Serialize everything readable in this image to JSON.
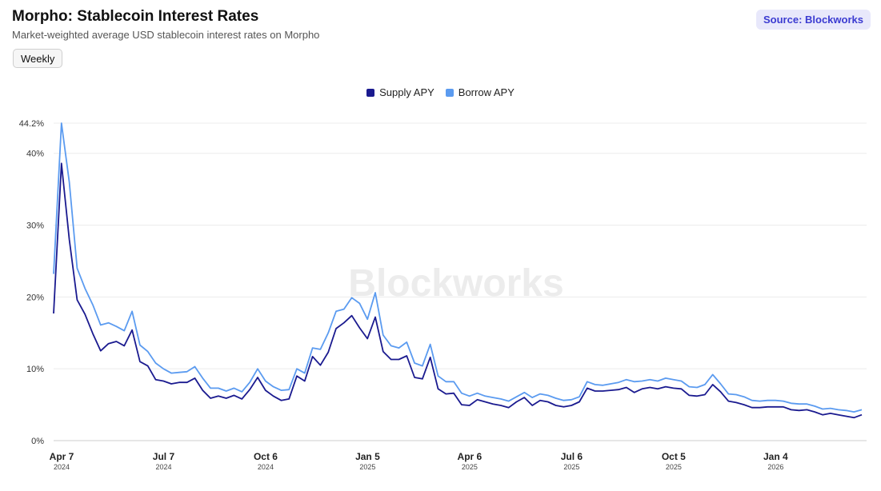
{
  "header": {
    "title": "Morpho: Stablecoin Interest Rates",
    "subtitle": "Market-weighted average USD stablecoin interest rates on Morpho",
    "source": "Source: Blockworks"
  },
  "controls": {
    "interval_label": "Weekly"
  },
  "watermark": "Blockworks",
  "colors": {
    "supply": "#1a1a8f",
    "borrow": "#5b9bf0",
    "grid": "#ececec",
    "watermark": "#ececec"
  },
  "chart_data": {
    "type": "line",
    "title": "Morpho: Stablecoin Interest Rates",
    "xlabel": "",
    "ylabel": "",
    "ylim": [
      0,
      44.2
    ],
    "y_ticks": [
      "0%",
      "10%",
      "20%",
      "30%",
      "40%",
      "44.2%"
    ],
    "y_tick_values": [
      0,
      10,
      20,
      30,
      40,
      44.2
    ],
    "x_ticks": [
      {
        "month": "Apr 7",
        "year": "2024",
        "index": 0
      },
      {
        "month": "Jul 7",
        "year": "2024",
        "index": 13
      },
      {
        "month": "Oct 6",
        "year": "2024",
        "index": 26
      },
      {
        "month": "Jan 5",
        "year": "2025",
        "index": 39
      },
      {
        "month": "Apr 6",
        "year": "2025",
        "index": 52
      },
      {
        "month": "Jul 6",
        "year": "2025",
        "index": 65
      },
      {
        "month": "Oct 5",
        "year": "2025",
        "index": 78
      },
      {
        "month": "Jan 4",
        "year": "2026",
        "index": 91
      }
    ],
    "legend": [
      "Supply APY",
      "Borrow APY"
    ],
    "series": [
      {
        "name": "Supply APY",
        "values": [
          17.7,
          38.6,
          28.0,
          19.6,
          17.6,
          14.9,
          12.5,
          13.5,
          13.8,
          13.2,
          15.4,
          11.0,
          10.4,
          8.5,
          8.3,
          7.9,
          8.1,
          8.1,
          8.7,
          7.0,
          5.9,
          6.2,
          5.9,
          6.3,
          5.8,
          7.1,
          8.8,
          7.0,
          6.2,
          5.6,
          5.8,
          9.0,
          8.3,
          11.7,
          10.5,
          12.3,
          15.6,
          16.4,
          17.4,
          15.7,
          14.2,
          17.2,
          12.4,
          11.3,
          11.3,
          11.8,
          8.8,
          8.6,
          11.6,
          7.2,
          6.5,
          6.6,
          5.0,
          4.9,
          5.7,
          5.4,
          5.1,
          4.9,
          4.6,
          5.4,
          6.0,
          4.9,
          5.6,
          5.4,
          4.9,
          4.7,
          4.9,
          5.4,
          7.3,
          6.9,
          6.9,
          7.0,
          7.1,
          7.4,
          6.7,
          7.2,
          7.4,
          7.2,
          7.5,
          7.3,
          7.2,
          6.3,
          6.2,
          6.4,
          7.8,
          6.8,
          5.5,
          5.3,
          5.0,
          4.6,
          4.6,
          4.7,
          4.7,
          4.7,
          4.3,
          4.2,
          4.3,
          4.0,
          3.6,
          3.8,
          3.6,
          3.4,
          3.2,
          3.6
        ]
      },
      {
        "name": "Borrow APY",
        "values": [
          23.2,
          44.2,
          36.0,
          24.0,
          21.2,
          18.9,
          16.1,
          16.4,
          15.9,
          15.3,
          18.0,
          13.3,
          12.4,
          10.8,
          10.0,
          9.4,
          9.5,
          9.6,
          10.3,
          8.7,
          7.3,
          7.3,
          6.9,
          7.3,
          6.8,
          8.1,
          10.0,
          8.3,
          7.5,
          7.0,
          7.1,
          10.0,
          9.4,
          12.9,
          12.7,
          15.0,
          18.0,
          18.3,
          19.9,
          19.1,
          16.9,
          20.6,
          14.7,
          13.2,
          12.9,
          13.7,
          10.8,
          10.4,
          13.4,
          9.0,
          8.2,
          8.2,
          6.6,
          6.2,
          6.6,
          6.2,
          6.0,
          5.8,
          5.5,
          6.1,
          6.7,
          6.0,
          6.5,
          6.3,
          5.9,
          5.6,
          5.7,
          6.1,
          8.2,
          7.8,
          7.7,
          7.9,
          8.1,
          8.5,
          8.2,
          8.3,
          8.5,
          8.3,
          8.7,
          8.5,
          8.3,
          7.5,
          7.4,
          7.8,
          9.2,
          7.9,
          6.5,
          6.4,
          6.1,
          5.6,
          5.5,
          5.6,
          5.6,
          5.5,
          5.2,
          5.1,
          5.1,
          4.8,
          4.4,
          4.5,
          4.3,
          4.2,
          4.0,
          4.3
        ]
      }
    ]
  }
}
